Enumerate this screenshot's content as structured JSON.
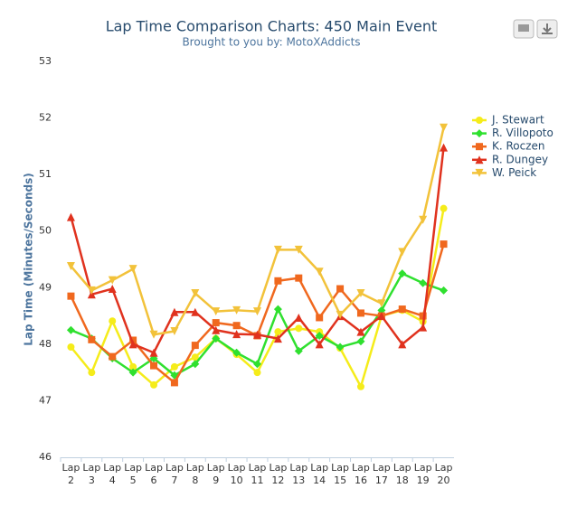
{
  "chart_data": {
    "type": "line",
    "title": "Lap Time Comparison Charts: 450 Main Event",
    "subtitle": "Brought to you by:  MotoXAddicts",
    "y_label": "Lap Time (Minutes/Seconds)",
    "categories": [
      "Lap 2",
      "Lap 3",
      "Lap 4",
      "Lap 5",
      "Lap 6",
      "Lap 7",
      "Lap 8",
      "Lap 9",
      "Lap 10",
      "Lap 11",
      "Lap 12",
      "Lap 13",
      "Lap 14",
      "Lap 15",
      "Lap 16",
      "Lap 17",
      "Lap 18",
      "Lap 19",
      "Lap 20"
    ],
    "series": [
      {
        "name": "J. Stewart",
        "color": "#f5ec1a",
        "symbol": "circle",
        "values": [
          47.95,
          47.5,
          48.41,
          47.6,
          47.28,
          47.6,
          47.77,
          48.1,
          47.82,
          47.5,
          48.22,
          48.28,
          48.22,
          47.93,
          47.25,
          48.5,
          48.6,
          48.4,
          50.4
        ]
      },
      {
        "name": "R. Villopoto",
        "color": "#2fe02f",
        "symbol": "diamond",
        "values": [
          48.25,
          48.1,
          47.75,
          47.5,
          47.75,
          47.45,
          47.65,
          48.1,
          47.85,
          47.65,
          48.62,
          47.88,
          48.15,
          47.95,
          48.05,
          48.6,
          49.25,
          49.08,
          48.95
        ]
      },
      {
        "name": "K. Roczen",
        "color": "#f0681e",
        "symbol": "square",
        "values": [
          48.85,
          48.08,
          47.78,
          48.07,
          47.62,
          47.32,
          47.98,
          48.38,
          48.33,
          48.15,
          49.12,
          49.17,
          48.47,
          48.98,
          48.55,
          48.5,
          48.62,
          48.5,
          49.77
        ]
      },
      {
        "name": "R. Dungey",
        "color": "#e0321e",
        "symbol": "triangle",
        "values": [
          50.25,
          48.88,
          48.98,
          48.0,
          47.85,
          48.57,
          48.57,
          48.25,
          48.18,
          48.17,
          48.1,
          48.47,
          48.0,
          48.5,
          48.22,
          48.5,
          48.0,
          48.3,
          51.48
        ]
      },
      {
        "name": "W. Peick",
        "color": "#f2c23a",
        "symbol": "triangle-down",
        "values": [
          49.38,
          48.95,
          49.13,
          49.33,
          48.17,
          48.23,
          48.9,
          48.58,
          48.6,
          48.58,
          49.67,
          49.67,
          49.28,
          48.52,
          48.9,
          48.72,
          49.63,
          50.2,
          51.83
        ]
      }
    ],
    "ylim": [
      46,
      53
    ],
    "yticks": [
      46,
      47,
      48,
      49,
      50,
      51,
      52,
      53
    ],
    "grid": false,
    "legend": "right"
  }
}
